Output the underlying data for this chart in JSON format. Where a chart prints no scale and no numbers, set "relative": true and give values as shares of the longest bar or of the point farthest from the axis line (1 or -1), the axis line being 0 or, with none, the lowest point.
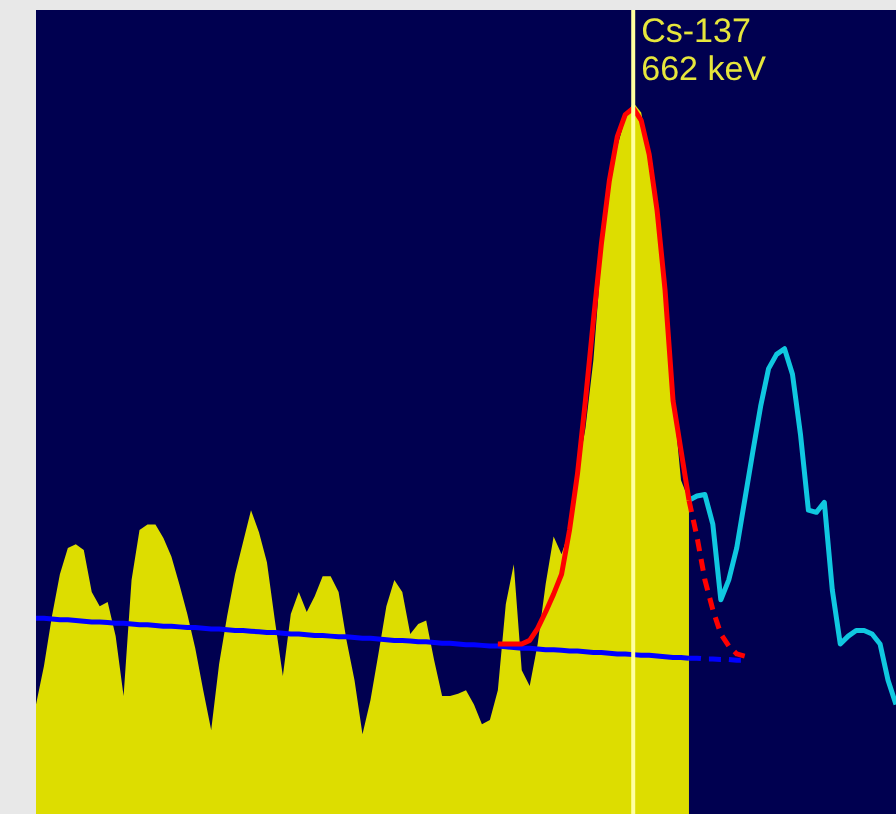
{
  "chart_data": {
    "type": "area",
    "relative": true,
    "marker": "none",
    "tick_labels": false,
    "annotations": [
      "Cs-137\n662 keV"
    ],
    "categories": [
      null,
      null,
      null,
      null,
      null,
      null,
      null,
      null,
      null,
      null,
      null,
      null,
      null,
      null,
      null,
      null,
      null,
      null,
      null,
      null,
      null,
      null,
      null,
      null,
      null,
      null,
      null,
      null,
      null,
      null,
      null,
      null,
      null,
      null,
      null,
      null,
      null,
      null,
      null,
      null,
      null,
      null,
      null,
      null,
      null,
      null,
      null,
      null,
      null,
      null,
      null,
      null,
      null,
      null,
      null,
      null,
      null,
      null,
      null,
      null,
      null,
      null,
      null,
      null,
      null,
      null,
      null,
      null,
      null,
      null,
      null,
      null,
      null,
      null,
      null,
      null,
      null,
      null,
      null,
      null,
      null,
      null,
      null,
      null,
      null,
      null,
      null,
      null,
      null,
      null,
      null,
      null,
      null,
      null,
      null,
      null,
      null,
      null,
      null,
      null,
      null,
      null,
      null,
      null,
      null,
      null,
      null,
      null,
      null
    ],
    "series": [
      {
        "color": "#dddd00",
        "values": [
          0.154,
          0.208,
          0.278,
          0.337,
          0.374,
          0.379,
          0.371,
          0.312,
          0.292,
          0.298,
          0.25,
          0.166,
          0.329,
          0.399,
          0.407,
          0.407,
          0.388,
          0.362,
          0.323,
          0.281,
          0.233,
          0.174,
          0.118,
          0.211,
          0.278,
          0.337,
          0.382,
          0.427,
          0.396,
          0.354,
          0.272,
          0.194,
          0.281,
          0.312,
          0.284,
          0.306,
          0.334,
          0.334,
          0.312,
          0.244,
          0.188,
          0.112,
          0.16,
          0.225,
          0.292,
          0.329,
          0.312,
          0.253,
          0.267,
          0.272,
          0.216,
          0.166,
          0.166,
          0.169,
          0.174,
          0.154,
          0.126,
          0.132,
          0.174,
          0.295,
          0.351,
          0.202,
          0.18,
          0.239,
          0.323,
          0.39,
          0.365,
          0.399,
          0.48,
          0.542,
          0.638,
          0.784,
          0.876,
          0.938,
          0.978,
          1,
          0.986,
          0.927,
          0.854,
          0.736,
          0.587,
          0.469,
          0.441,
          null,
          null,
          null,
          null,
          null,
          null,
          null,
          null,
          null,
          null,
          null,
          null,
          null,
          null,
          null,
          null,
          null,
          null,
          null,
          null,
          null,
          null,
          null,
          null,
          null,
          null
        ]
      },
      {
        "type": "line",
        "color": "#10c8e0",
        "values": [
          null,
          null,
          null,
          null,
          null,
          null,
          null,
          null,
          null,
          null,
          null,
          null,
          null,
          null,
          null,
          null,
          null,
          null,
          null,
          null,
          null,
          null,
          null,
          null,
          null,
          null,
          null,
          null,
          null,
          null,
          null,
          null,
          null,
          null,
          null,
          null,
          null,
          null,
          null,
          null,
          null,
          null,
          null,
          null,
          null,
          null,
          null,
          null,
          null,
          null,
          null,
          null,
          null,
          null,
          null,
          null,
          null,
          null,
          null,
          null,
          null,
          null,
          null,
          null,
          null,
          null,
          null,
          null,
          null,
          null,
          null,
          null,
          null,
          null,
          null,
          null,
          null,
          null,
          null,
          null,
          null,
          null,
          0.441,
          0.447,
          0.449,
          0.407,
          0.301,
          0.329,
          0.374,
          0.441,
          0.508,
          0.573,
          0.626,
          0.646,
          0.654,
          0.618,
          0.534,
          0.427,
          0.424,
          0.438,
          0.315,
          0.239,
          0.25,
          0.258,
          0.258,
          0.253,
          0.239,
          0.188,
          0.154
        ]
      },
      {
        "type": "line",
        "color": "#0000ff",
        "line_style": "solid",
        "values": [
          0.275,
          0.275,
          0.274,
          0.273,
          0.273,
          0.272,
          0.271,
          0.27,
          0.27,
          0.269,
          0.268,
          0.268,
          0.267,
          0.266,
          0.266,
          0.265,
          0.264,
          0.264,
          0.263,
          0.262,
          0.262,
          0.261,
          0.26,
          0.26,
          0.259,
          0.258,
          0.258,
          0.257,
          0.256,
          0.255,
          0.255,
          0.254,
          0.253,
          0.253,
          0.252,
          0.251,
          0.251,
          0.25,
          0.249,
          0.249,
          0.248,
          0.247,
          0.247,
          0.246,
          0.245,
          0.244,
          0.244,
          0.243,
          0.242,
          0.242,
          0.241,
          0.24,
          0.24,
          0.239,
          0.238,
          0.238,
          0.237,
          0.236,
          0.236,
          0.235,
          0.234,
          0.233,
          0.233,
          0.232,
          0.231,
          0.231,
          0.23,
          0.229,
          0.229,
          0.228,
          0.227,
          0.227,
          0.226,
          0.225,
          0.225,
          0.224,
          0.223,
          0.223,
          0.222,
          0.221,
          0.22,
          0.22,
          0.219,
          null,
          null,
          null,
          null,
          null,
          null,
          null,
          null,
          null,
          null,
          null,
          null,
          null,
          null,
          null,
          null,
          null,
          null,
          null,
          null,
          null,
          null,
          null,
          null,
          null,
          null
        ]
      },
      {
        "type": "line",
        "color": "#0000ff",
        "line_style": "dashed",
        "values": [
          null,
          null,
          null,
          null,
          null,
          null,
          null,
          null,
          null,
          null,
          null,
          null,
          null,
          null,
          null,
          null,
          null,
          null,
          null,
          null,
          null,
          null,
          null,
          null,
          null,
          null,
          null,
          null,
          null,
          null,
          null,
          null,
          null,
          null,
          null,
          null,
          null,
          null,
          null,
          null,
          null,
          null,
          null,
          null,
          null,
          null,
          null,
          null,
          null,
          null,
          null,
          null,
          null,
          null,
          null,
          null,
          null,
          null,
          null,
          null,
          null,
          null,
          null,
          null,
          null,
          null,
          null,
          null,
          null,
          null,
          null,
          null,
          null,
          null,
          null,
          null,
          null,
          null,
          null,
          null,
          null,
          null,
          0.219,
          0.219,
          0.218,
          0.218,
          0.217,
          0.217,
          0.216,
          0.216,
          null,
          null,
          null,
          null,
          null,
          null,
          null,
          null,
          null,
          null,
          null,
          null,
          null,
          null,
          null,
          null,
          null,
          null,
          null
        ]
      },
      {
        "type": "line",
        "color": "#ff0000",
        "line_style": "solid",
        "values": [
          null,
          null,
          null,
          null,
          null,
          null,
          null,
          null,
          null,
          null,
          null,
          null,
          null,
          null,
          null,
          null,
          null,
          null,
          null,
          null,
          null,
          null,
          null,
          null,
          null,
          null,
          null,
          null,
          null,
          null,
          null,
          null,
          null,
          null,
          null,
          null,
          null,
          null,
          null,
          null,
          null,
          null,
          null,
          null,
          null,
          null,
          null,
          null,
          null,
          null,
          null,
          null,
          null,
          null,
          null,
          null,
          null,
          null,
          0.239,
          0.239,
          0.239,
          0.239,
          0.244,
          0.261,
          0.284,
          0.309,
          0.337,
          0.399,
          0.478,
          0.581,
          0.694,
          0.801,
          0.89,
          0.952,
          0.983,
          0.992,
          0.975,
          0.927,
          0.848,
          0.736,
          0.581,
          0.511,
          0.441,
          null,
          null,
          null,
          null,
          null,
          null,
          null,
          null,
          null,
          null,
          null,
          null,
          null,
          null,
          null,
          null,
          null,
          null,
          null,
          null,
          null,
          null,
          null,
          null,
          null,
          null
        ]
      },
      {
        "type": "line",
        "color": "#ff0000",
        "line_style": "dashed",
        "values": [
          null,
          null,
          null,
          null,
          null,
          null,
          null,
          null,
          null,
          null,
          null,
          null,
          null,
          null,
          null,
          null,
          null,
          null,
          null,
          null,
          null,
          null,
          null,
          null,
          null,
          null,
          null,
          null,
          null,
          null,
          null,
          null,
          null,
          null,
          null,
          null,
          null,
          null,
          null,
          null,
          null,
          null,
          null,
          null,
          null,
          null,
          null,
          null,
          null,
          null,
          null,
          null,
          null,
          null,
          null,
          null,
          null,
          null,
          null,
          null,
          null,
          null,
          null,
          null,
          null,
          null,
          null,
          null,
          null,
          null,
          null,
          null,
          null,
          null,
          null,
          null,
          null,
          null,
          null,
          null,
          null,
          null,
          0.441,
          0.39,
          0.329,
          0.287,
          0.253,
          0.236,
          0.225,
          0.222,
          null,
          null,
          null,
          null,
          null,
          null,
          null,
          null,
          null,
          null,
          null,
          null,
          null,
          null,
          null,
          null,
          null,
          null,
          null
        ]
      }
    ]
  }
}
